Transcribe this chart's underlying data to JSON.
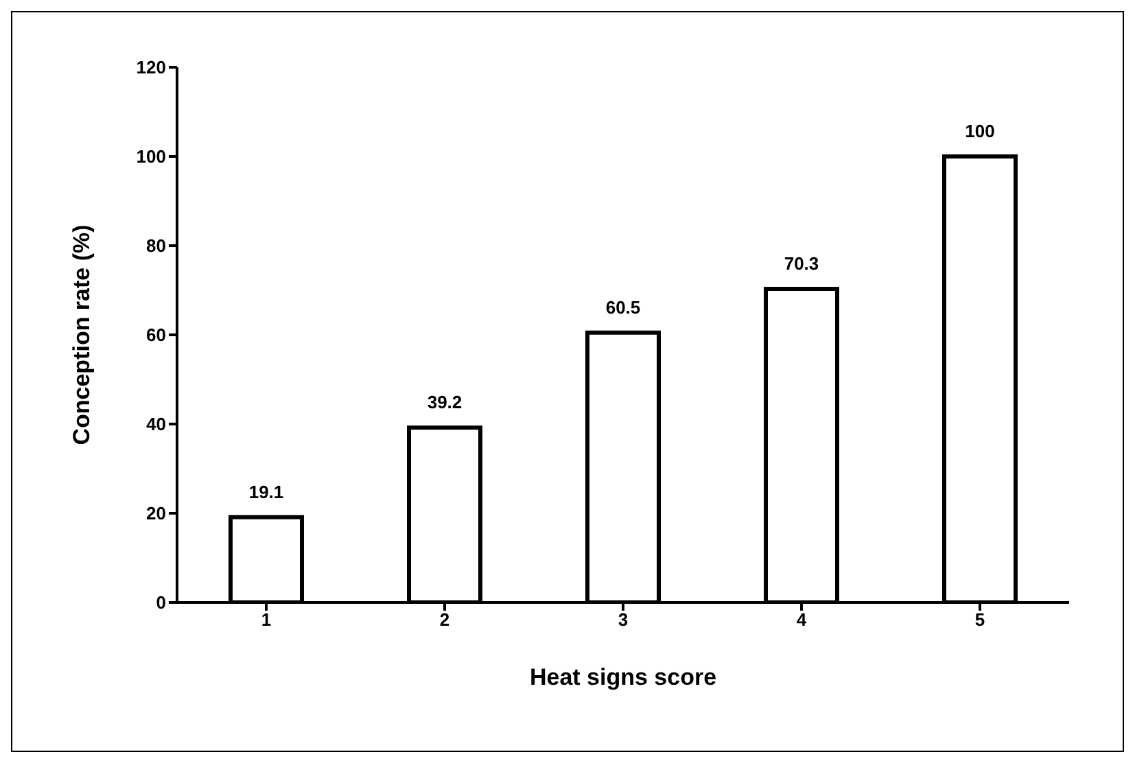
{
  "chart_data": {
    "type": "bar",
    "xlabel": "Heat signs score",
    "ylabel": "Conception rate (%)",
    "categories": [
      "1",
      "2",
      "3",
      "4",
      "5"
    ],
    "values": [
      19.1,
      39.2,
      60.5,
      70.3,
      100
    ],
    "color": "#ffffff",
    "ylim": [
      0,
      120
    ],
    "yticks": [
      0,
      20,
      40,
      60,
      80,
      100,
      120
    ],
    "data_labels": true,
    "grid": false,
    "legend": false
  }
}
